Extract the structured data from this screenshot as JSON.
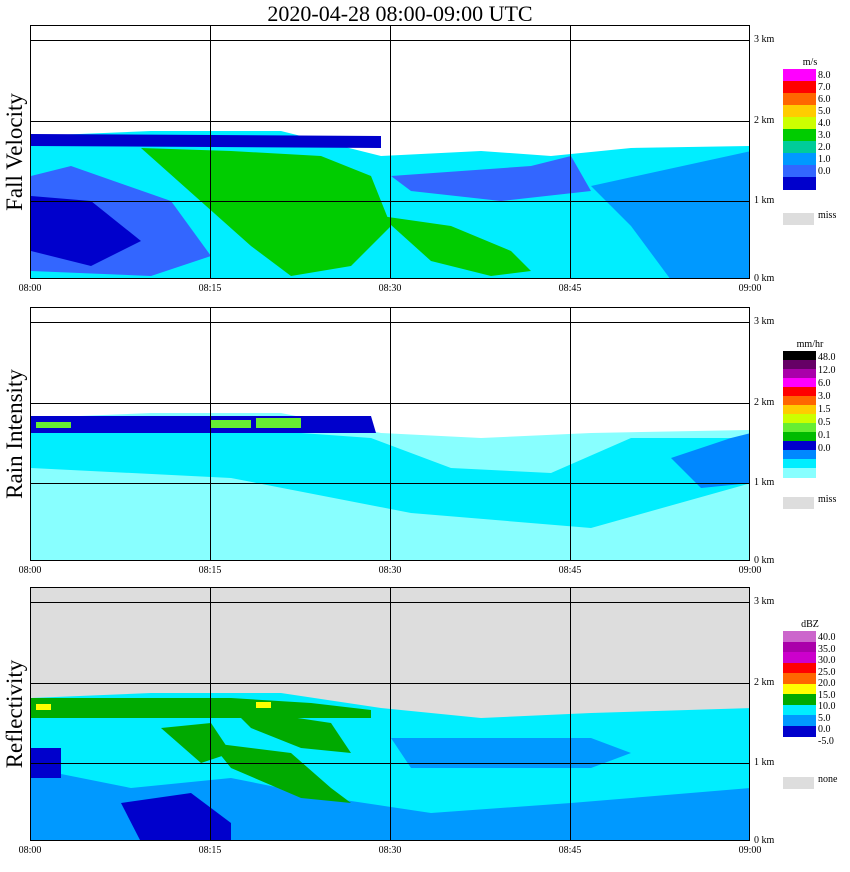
{
  "title": "2020-04-28   08:00-09:00 UTC",
  "x_ticks": [
    "08:00",
    "08:15",
    "08:30",
    "08:45",
    "09:00"
  ],
  "y_ticks": [
    "3 km",
    "2 km",
    "1 km",
    "0 km"
  ],
  "chart_data": [
    {
      "type": "heatmap",
      "title": "Fall Velocity",
      "x_range": [
        "08:00",
        "09:00"
      ],
      "y_range_km": [
        0,
        3.1
      ],
      "grid": true,
      "legend_position": "right",
      "legend": {
        "unit": "m/s",
        "levels": [
          "8.0",
          "7.0",
          "6.0",
          "5.0",
          "4.0",
          "3.0",
          "2.0",
          "1.0",
          "0.0",
          "miss"
        ],
        "colors": [
          "#ff00ff",
          "#ff0000",
          "#ff6600",
          "#ffcc00",
          "#ccff00",
          "#00cc00",
          "#00cc99",
          "#0099ff",
          "#3366ff",
          "#0000cc",
          "#dddddd"
        ]
      }
    },
    {
      "type": "heatmap",
      "title": "Rain Intensity",
      "x_range": [
        "08:00",
        "09:00"
      ],
      "y_range_km": [
        0,
        3.1
      ],
      "grid": true,
      "legend_position": "right",
      "legend": {
        "unit": "mm/hr",
        "levels": [
          "48.0",
          "12.0",
          "6.0",
          "3.0",
          "1.5",
          "0.5",
          "0.1",
          "0.0",
          "miss"
        ],
        "colors": [
          "#000000",
          "#660066",
          "#aa00aa",
          "#ff00ff",
          "#ff0000",
          "#ff6600",
          "#ffcc00",
          "#ccff00",
          "#66ee33",
          "#00bb00",
          "#0000cc",
          "#0088ff",
          "#00eeff",
          "#88ffff",
          "#dddddd"
        ]
      }
    },
    {
      "type": "heatmap",
      "title": "Reflectivity",
      "x_range": [
        "08:00",
        "09:00"
      ],
      "y_range_km": [
        0,
        3.1
      ],
      "grid": true,
      "legend_position": "right",
      "legend": {
        "unit": "dBZ",
        "levels": [
          "40.0",
          "35.0",
          "30.0",
          "25.0",
          "20.0",
          "15.0",
          "10.0",
          "5.0",
          "0.0",
          "-5.0",
          "none"
        ],
        "colors": [
          "#cc66cc",
          "#aa00aa",
          "#cc00cc",
          "#ff0000",
          "#ff6600",
          "#ffff00",
          "#00aa00",
          "#00eeff",
          "#0099ff",
          "#0000cc",
          "#dddddd"
        ]
      }
    }
  ]
}
